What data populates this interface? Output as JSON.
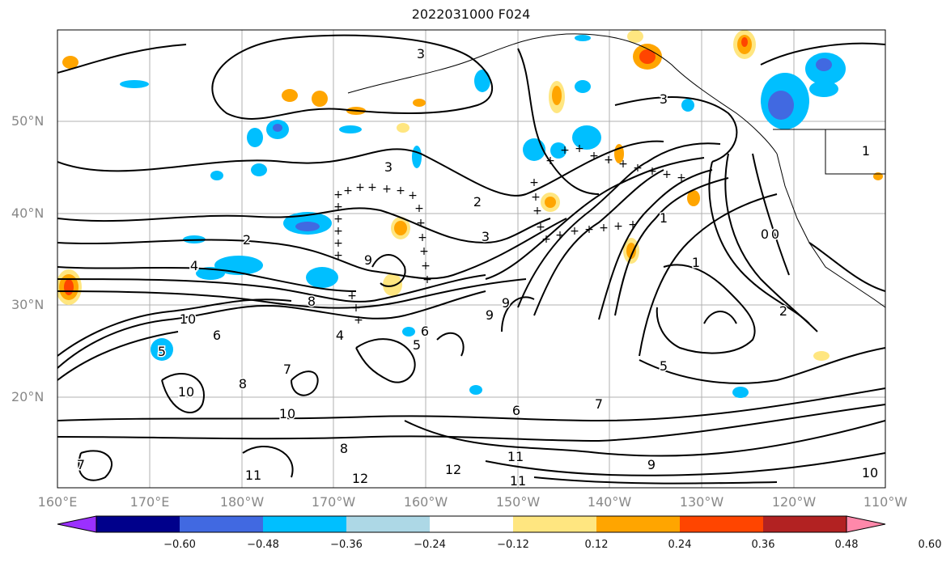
{
  "title": "2022031000 F024",
  "map": {
    "lat_labels": [
      "50°N",
      "40°N",
      "30°N",
      "20°N"
    ],
    "lon_labels": [
      "160°E",
      "170°E",
      "180°W",
      "170°W",
      "160°W",
      "150°W",
      "140°W",
      "130°W",
      "120°W",
      "110°W"
    ],
    "contour_labels": [
      "3",
      "3",
      "3",
      "3",
      "2",
      "2",
      "1",
      "1",
      "0",
      "9",
      "9",
      "9",
      "8",
      "8",
      "7",
      "7",
      "6",
      "6",
      "5",
      "5",
      "4",
      "4",
      "10",
      "10",
      "10",
      "11",
      "11",
      "11",
      "12",
      "12",
      "1",
      "2",
      "0",
      "5",
      "6",
      "7",
      "8",
      "9",
      "10"
    ]
  },
  "colorbar": {
    "tick_labels": [
      "−0.60",
      "−0.48",
      "−0.36",
      "−0.24",
      "−0.12",
      "0.12",
      "0.24",
      "0.36",
      "0.48",
      "0.60"
    ],
    "colors": [
      "#9b30ff",
      "#00008b",
      "#4169e1",
      "#00bfff",
      "#add8e6",
      "#ffffff",
      "#ffe680",
      "#ffa500",
      "#ff4500",
      "#b22222",
      "#ff88aa"
    ]
  }
}
